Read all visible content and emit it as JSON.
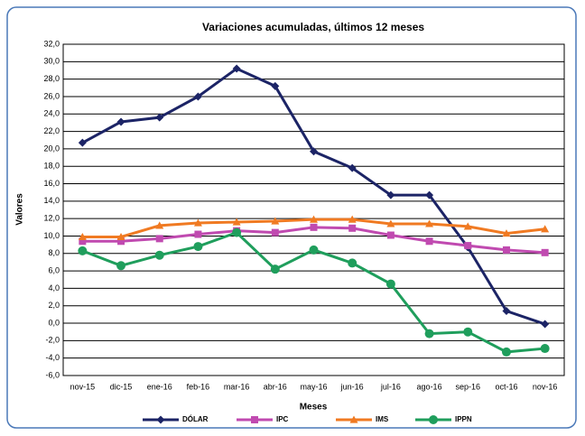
{
  "chart_data": {
    "type": "line",
    "title": "Variaciones acumuladas, últimos 12 meses",
    "x_label": "Meses",
    "y_label": "Valores",
    "categories": [
      "nov-15",
      "dic-15",
      "ene-16",
      "feb-16",
      "mar-16",
      "abr-16",
      "may-16",
      "jun-16",
      "jul-16",
      "ago-16",
      "sep-16",
      "oct-16",
      "nov-16"
    ],
    "series": [
      {
        "name": "DÓLAR",
        "color": "#1c2466",
        "marker": "diamond",
        "values": [
          20.7,
          23.1,
          23.6,
          26.0,
          29.2,
          27.2,
          19.7,
          17.8,
          14.7,
          14.7,
          8.7,
          1.4,
          -0.1
        ]
      },
      {
        "name": "IPC",
        "color": "#c04ab0",
        "marker": "square",
        "values": [
          9.4,
          9.4,
          9.7,
          10.2,
          10.6,
          10.4,
          11.0,
          10.9,
          10.1,
          9.4,
          8.9,
          8.4,
          8.1
        ]
      },
      {
        "name": "IMS",
        "color": "#f07a22",
        "marker": "triangle",
        "values": [
          9.9,
          9.9,
          11.2,
          11.5,
          11.6,
          11.7,
          11.9,
          11.9,
          11.4,
          11.4,
          11.1,
          10.3,
          10.8
        ]
      },
      {
        "name": "IPPN",
        "color": "#1f9e5c",
        "marker": "circle",
        "values": [
          8.3,
          6.6,
          7.8,
          8.8,
          10.4,
          6.2,
          8.4,
          6.9,
          4.5,
          -1.2,
          -1.0,
          -3.3,
          -2.9
        ]
      }
    ],
    "ylim": [
      -6,
      32
    ],
    "yticks": [
      {
        "value": -6,
        "label": "-6,0"
      },
      {
        "value": -4,
        "label": "-4,0"
      },
      {
        "value": -2,
        "label": "-2,0"
      },
      {
        "value": 0,
        "label": "0,0"
      },
      {
        "value": 2,
        "label": "2,0"
      },
      {
        "value": 4,
        "label": "4,0"
      },
      {
        "value": 6,
        "label": "6,0"
      },
      {
        "value": 8,
        "label": "8,0"
      },
      {
        "value": 10,
        "label": "10,0"
      },
      {
        "value": 12,
        "label": "12,0"
      },
      {
        "value": 14,
        "label": "14,0"
      },
      {
        "value": 16,
        "label": "16,0"
      },
      {
        "value": 18,
        "label": "18,0"
      },
      {
        "value": 20,
        "label": "20,0"
      },
      {
        "value": 22,
        "label": "22,0"
      },
      {
        "value": 24,
        "label": "24,0"
      },
      {
        "value": 26,
        "label": "26,0"
      },
      {
        "value": 28,
        "label": "28,0"
      },
      {
        "value": 30,
        "label": "30,0"
      },
      {
        "value": 32,
        "label": "32,0"
      }
    ],
    "grid": true,
    "legend": "bottom"
  }
}
